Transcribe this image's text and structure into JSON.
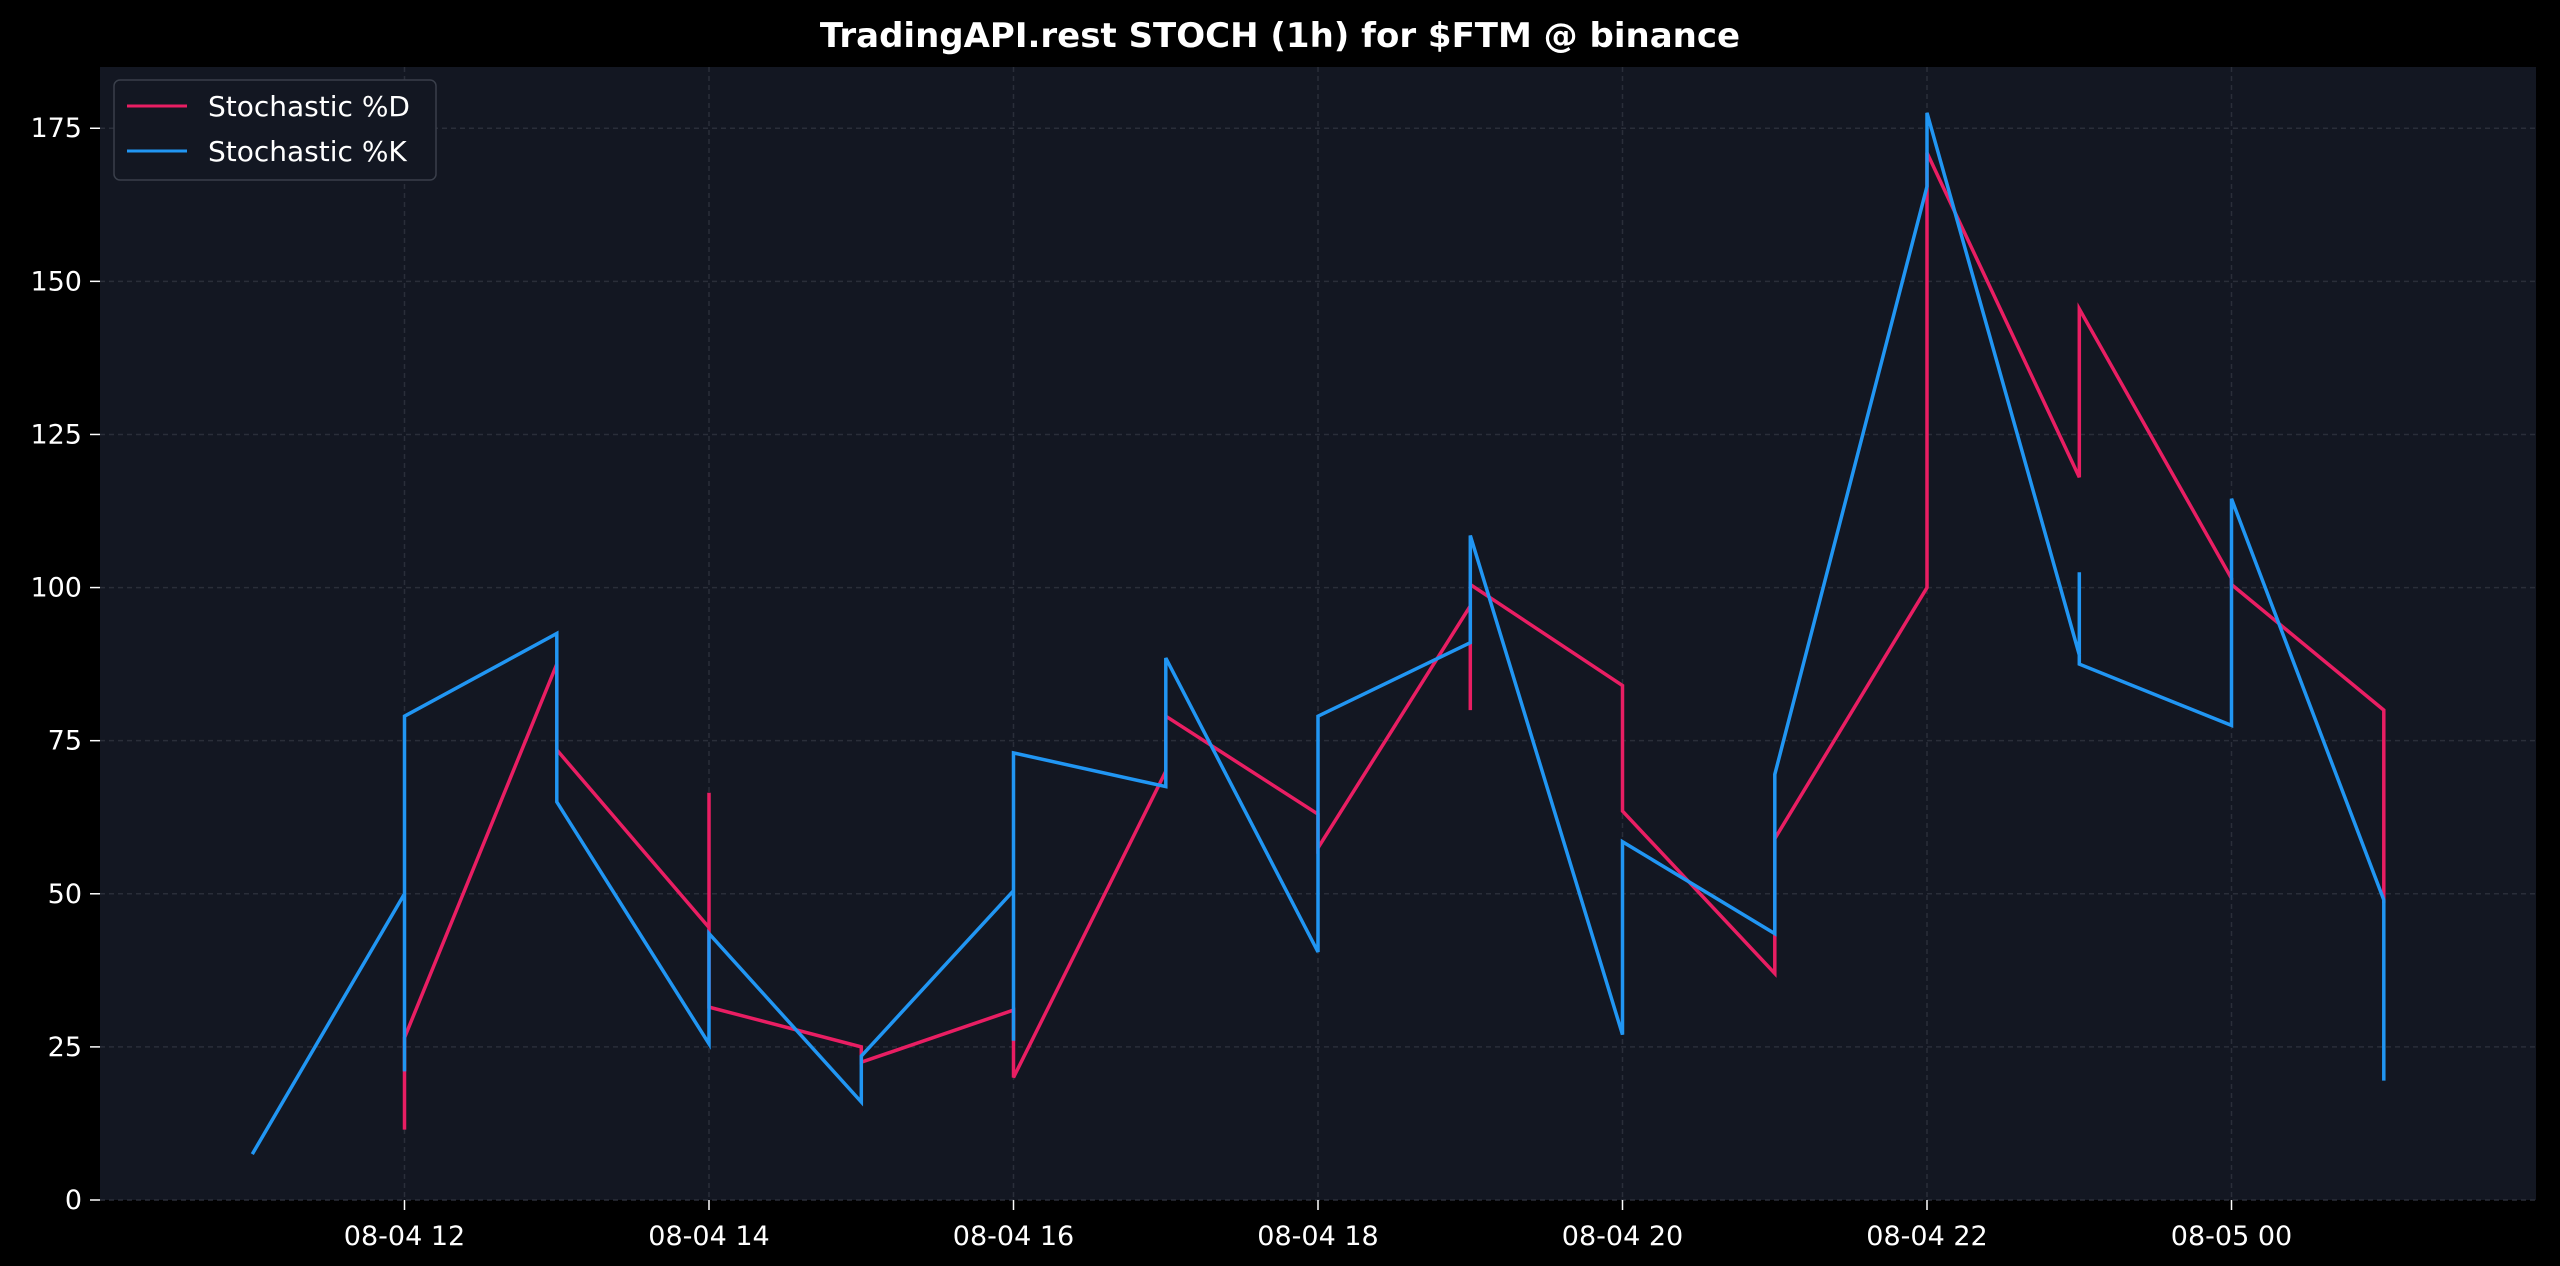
{
  "chart_data": {
    "type": "line",
    "title": "TradingAPI.rest STOCH (1h) for $FTM @ binance",
    "xlabel": "",
    "ylabel": "",
    "xlim": [
      "2024-08-04 10:00",
      "2024-08-05 02:00"
    ],
    "ylim": [
      0,
      185
    ],
    "yticks": [
      0,
      25,
      50,
      75,
      100,
      125,
      150,
      175
    ],
    "xticks": [
      {
        "x": "2024-08-04 12:00",
        "label": "08-04 12"
      },
      {
        "x": "2024-08-04 14:00",
        "label": "08-04 14"
      },
      {
        "x": "2024-08-04 16:00",
        "label": "08-04 16"
      },
      {
        "x": "2024-08-04 18:00",
        "label": "08-04 18"
      },
      {
        "x": "2024-08-04 20:00",
        "label": "08-04 20"
      },
      {
        "x": "2024-08-04 22:00",
        "label": "08-04 22"
      },
      {
        "x": "2024-08-05 00:00",
        "label": "08-05 00"
      }
    ],
    "grid": true,
    "legend_position": "top-left",
    "background": "#131722",
    "series": [
      {
        "name": "Stochastic %D",
        "color": "#e91e63",
        "points": [
          [
            "2024-08-04 12:00",
            11.5
          ],
          [
            "2024-08-04 12:00",
            26.5
          ],
          [
            "2024-08-04 13:00",
            87.5
          ],
          [
            "2024-08-04 13:00",
            73.5
          ],
          [
            "2024-08-04 14:00",
            44.5
          ],
          [
            "2024-08-04 14:00",
            66.5
          ],
          [
            "2024-08-04 14:00",
            31.5
          ],
          [
            "2024-08-04 15:00",
            25
          ],
          [
            "2024-08-04 15:00",
            22.5
          ],
          [
            "2024-08-04 16:00",
            31
          ],
          [
            "2024-08-04 16:00",
            20
          ],
          [
            "2024-08-04 17:00",
            70
          ],
          [
            "2024-08-04 17:00",
            79
          ],
          [
            "2024-08-04 18:00",
            63
          ],
          [
            "2024-08-04 18:00",
            57.5
          ],
          [
            "2024-08-04 19:00",
            97
          ],
          [
            "2024-08-04 19:00",
            80
          ],
          [
            "2024-08-04 19:00",
            100.5
          ],
          [
            "2024-08-04 20:00",
            84
          ],
          [
            "2024-08-04 20:00",
            63.5
          ],
          [
            "2024-08-04 21:00",
            37
          ],
          [
            "2024-08-04 21:00",
            59
          ],
          [
            "2024-08-04 22:00",
            100
          ],
          [
            "2024-08-04 22:00",
            171
          ],
          [
            "2024-08-04 23:00",
            118
          ],
          [
            "2024-08-04 23:00",
            145.5
          ],
          [
            "2024-08-05 00:00",
            101.5
          ],
          [
            "2024-08-05 00:00",
            100.5
          ],
          [
            "2024-08-05 01:00",
            80
          ],
          [
            "2024-08-05 01:00",
            48.5
          ]
        ]
      },
      {
        "name": "Stochastic %K",
        "color": "#2196f3",
        "points": [
          [
            "2024-08-04 11:00",
            7.5
          ],
          [
            "2024-08-04 12:00",
            50
          ],
          [
            "2024-08-04 12:00",
            21
          ],
          [
            "2024-08-04 12:00",
            79
          ],
          [
            "2024-08-04 13:00",
            92.5
          ],
          [
            "2024-08-04 13:00",
            65
          ],
          [
            "2024-08-04 14:00",
            25.5
          ],
          [
            "2024-08-04 14:00",
            43.5
          ],
          [
            "2024-08-04 15:00",
            16
          ],
          [
            "2024-08-04 15:00",
            23.5
          ],
          [
            "2024-08-04 16:00",
            50.5
          ],
          [
            "2024-08-04 16:00",
            26
          ],
          [
            "2024-08-04 16:00",
            73
          ],
          [
            "2024-08-04 17:00",
            67.5
          ],
          [
            "2024-08-04 17:00",
            88.5
          ],
          [
            "2024-08-04 18:00",
            40.5
          ],
          [
            "2024-08-04 18:00",
            79
          ],
          [
            "2024-08-04 19:00",
            91
          ],
          [
            "2024-08-04 19:00",
            108.5
          ],
          [
            "2024-08-04 20:00",
            27
          ],
          [
            "2024-08-04 20:00",
            58.5
          ],
          [
            "2024-08-04 21:00",
            43.5
          ],
          [
            "2024-08-04 21:00",
            69.5
          ],
          [
            "2024-08-04 22:00",
            165.5
          ],
          [
            "2024-08-04 22:00",
            177.5
          ],
          [
            "2024-08-04 23:00",
            89
          ],
          [
            "2024-08-04 23:00",
            102.5
          ],
          [
            "2024-08-04 23:00",
            87.5
          ],
          [
            "2024-08-05 00:00",
            77.5
          ],
          [
            "2024-08-05 00:00",
            114.5
          ],
          [
            "2024-08-05 01:00",
            49
          ],
          [
            "2024-08-05 01:00",
            19.5
          ]
        ]
      }
    ]
  }
}
